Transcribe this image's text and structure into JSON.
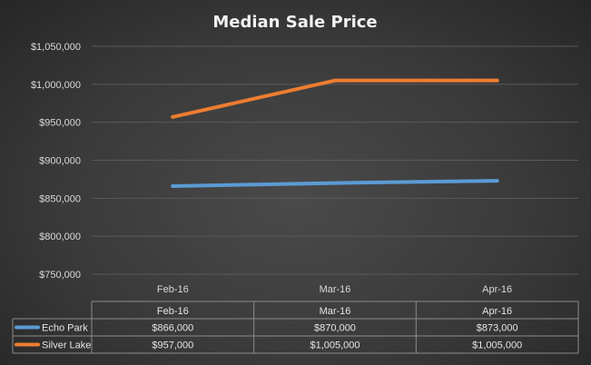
{
  "chart_data": {
    "type": "line",
    "title": "Median Sale Price",
    "categories": [
      "Feb-16",
      "Mar-16",
      "Apr-16"
    ],
    "yticks": [
      "$750,000",
      "$800,000",
      "$850,000",
      "$900,000",
      "$950,000",
      "$1,000,000",
      "$1,050,000"
    ],
    "ylim": [
      750000,
      1050000
    ],
    "grid": true,
    "legend": "data-table",
    "series": [
      {
        "name": "Echo Park",
        "color": "#5b9bd5",
        "values": [
          866000,
          870000,
          873000
        ],
        "labels": [
          "$866,000",
          "$870,000",
          "$873,000"
        ]
      },
      {
        "name": "Silver Lake",
        "color": "#ed7d31",
        "values": [
          957000,
          1005000,
          1005000
        ],
        "labels": [
          "$957,000",
          "$1,005,000",
          "$1,005,000"
        ]
      }
    ]
  }
}
